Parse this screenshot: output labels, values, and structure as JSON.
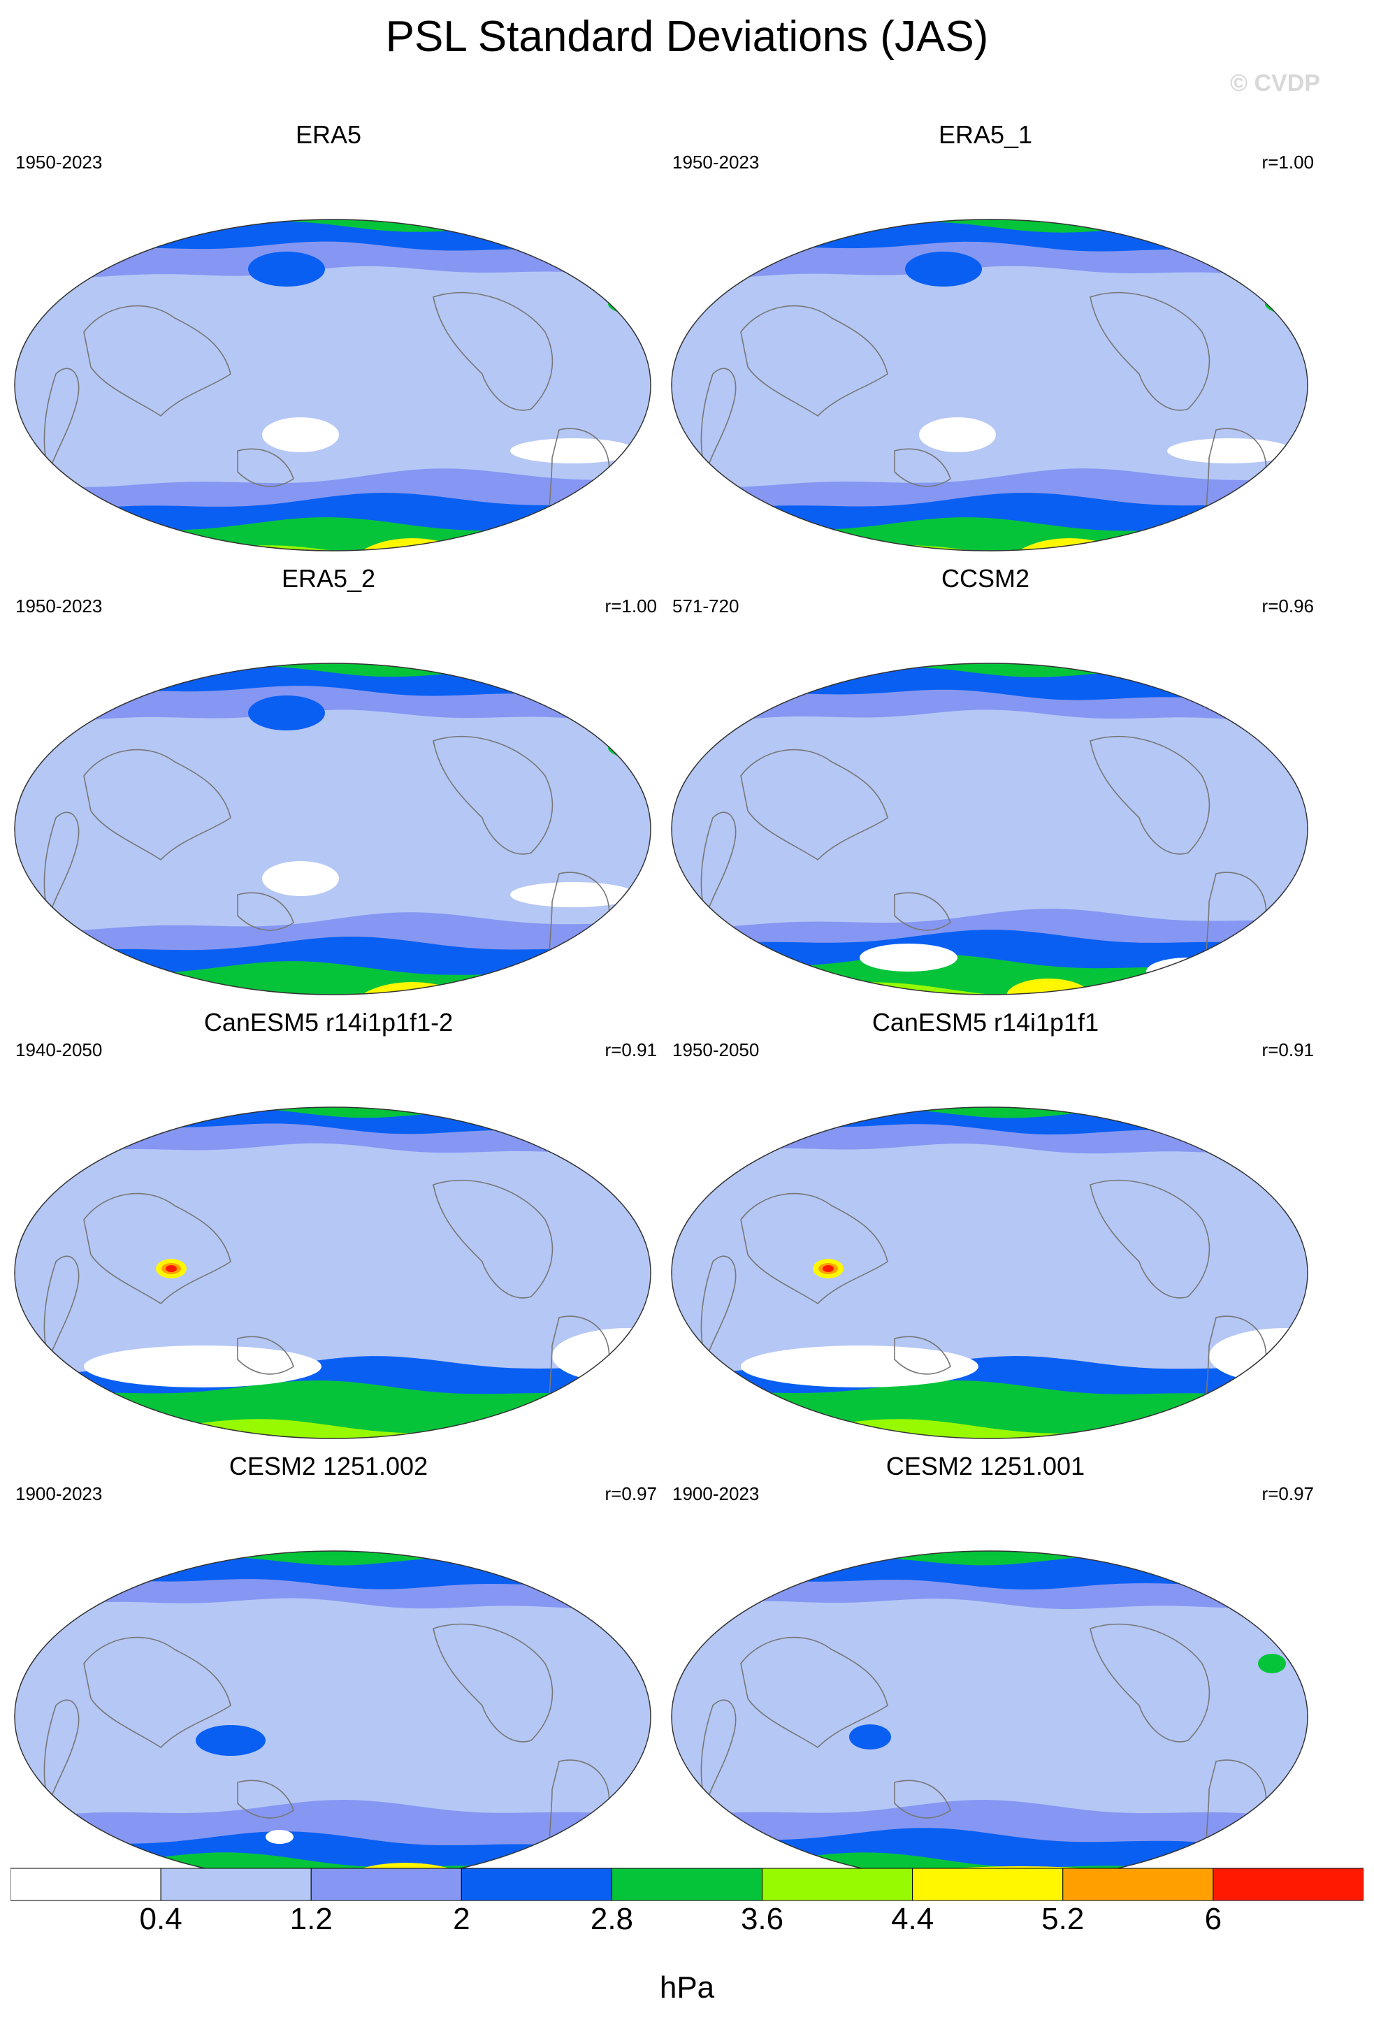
{
  "title": "PSL Standard Deviations (JAS)",
  "watermark": "© CVDP",
  "colors": {
    "levels": [
      "#ffffff",
      "#b5c7f5",
      "#8597f2",
      "#0a5ff3",
      "#06c43a",
      "#98fa00",
      "#fff700",
      "#ffa000",
      "#ff1900"
    ],
    "continent_line": "#777777",
    "border": "#333333"
  },
  "panels": [
    {
      "title": "ERA5",
      "period": "1950-2023",
      "corr": "",
      "variant": "era5"
    },
    {
      "title": "ERA5_1",
      "period": "1950-2023",
      "corr": "r=1.00",
      "variant": "era5"
    },
    {
      "title": "ERA5_2",
      "period": "1950-2023",
      "corr": "r=1.00",
      "variant": "era5"
    },
    {
      "title": "CCSM2",
      "period": "571-720",
      "corr": "r=0.96",
      "variant": "ccsm2"
    },
    {
      "title": "CanESM5 r14i1p1f1-2",
      "period": "1940-2050",
      "corr": "r=0.91",
      "variant": "canesm"
    },
    {
      "title": "CanESM5 r14i1p1f1",
      "period": "1950-2050",
      "corr": "r=0.91",
      "variant": "canesm"
    },
    {
      "title": "CESM2 1251.002",
      "period": "1900-2023",
      "corr": "r=0.97",
      "variant": "cesm2"
    },
    {
      "title": "CESM2 1251.001",
      "period": "1900-2023",
      "corr": "r=0.97",
      "variant": "cesm2b"
    }
  ],
  "colorbar": {
    "labels": [
      "0.4",
      "1.2",
      "2",
      "2.8",
      "3.6",
      "4.4",
      "5.2",
      "6"
    ],
    "units": "hPa"
  }
}
